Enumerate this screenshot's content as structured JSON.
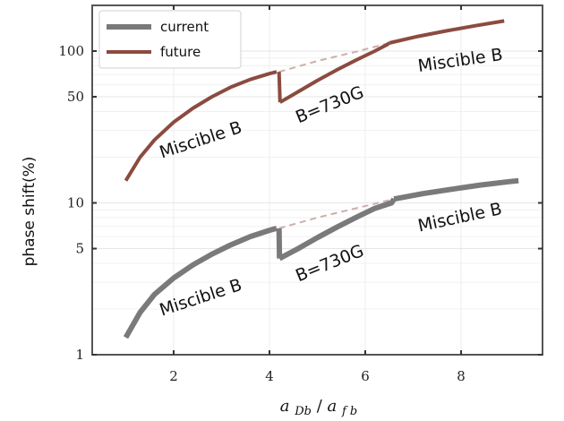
{
  "chart_data": {
    "type": "line",
    "title": "",
    "xlabel": "a_Db/a_fb",
    "xlabel_parts": {
      "a1": "a",
      "s1": "Db",
      "slash": "/",
      "a2": "a",
      "s2": "f b"
    },
    "ylabel": "phase shift(%)",
    "xlim": [
      0.3,
      9.7
    ],
    "ylim": [
      1,
      200
    ],
    "yscale": "log",
    "grid": true,
    "legend_position": "top-left",
    "x_ticks": [
      2,
      4,
      6,
      8
    ],
    "x_tick_labels": [
      "2",
      "4",
      "6",
      "8"
    ],
    "y_ticks": [
      1,
      5,
      10,
      50,
      100
    ],
    "y_tick_labels": [
      "1",
      "5",
      "10",
      "50",
      "100"
    ],
    "colors": {
      "current": "#7a7a7a",
      "future": "#8b4b3f",
      "dashed": "#c9b1aa",
      "frame": "#555555"
    },
    "series": [
      {
        "name": "current",
        "segments": [
          {
            "x": [
              1.0,
              1.3,
              1.6,
              2.0,
              2.4,
              2.8,
              3.2,
              3.6,
              4.0,
              4.15
            ],
            "y": [
              1.3,
              1.9,
              2.5,
              3.2,
              3.9,
              4.6,
              5.3,
              6.0,
              6.6,
              6.8
            ]
          },
          {
            "x": [
              4.2,
              4.21
            ],
            "y": [
              6.8,
              4.3
            ]
          },
          {
            "x": [
              4.21,
              4.6,
              5.0,
              5.4,
              5.8,
              6.2,
              6.55,
              6.6
            ],
            "y": [
              4.3,
              5.0,
              5.9,
              6.9,
              8.0,
              9.2,
              10.0,
              10.6
            ]
          },
          {
            "x": [
              6.6,
              7.2,
              7.8,
              8.4,
              9.0,
              9.2
            ],
            "y": [
              10.6,
              11.5,
              12.3,
              13.1,
              13.8,
              14.0
            ]
          }
        ],
        "dashed": {
          "x": [
            4.2,
            5.0,
            5.8,
            6.6
          ],
          "y": [
            6.8,
            8.0,
            9.2,
            10.6
          ]
        }
      },
      {
        "name": "future",
        "segments": [
          {
            "x": [
              1.0,
              1.3,
              1.6,
              2.0,
              2.4,
              2.8,
              3.2,
              3.6,
              4.0,
              4.15
            ],
            "y": [
              14.0,
              20.0,
              26.0,
              34.0,
              42.0,
              50.0,
              58.0,
              65.0,
              71.0,
              73.0
            ]
          },
          {
            "x": [
              4.2,
              4.22
            ],
            "y": [
              73.0,
              46.0
            ]
          },
          {
            "x": [
              4.22,
              4.6,
              5.0,
              5.4,
              5.8,
              6.2,
              6.45,
              6.5
            ],
            "y": [
              46.0,
              54.0,
              64.0,
              75.0,
              87.0,
              100.0,
              110.0,
              113.0
            ]
          },
          {
            "x": [
              6.5,
              7.1,
              7.7,
              8.3,
              8.9
            ],
            "y": [
              113.0,
              125.0,
              136.0,
              147.0,
              158.0
            ]
          }
        ],
        "dashed": {
          "x": [
            4.2,
            5.0,
            5.8,
            6.5
          ],
          "y": [
            73.0,
            86.0,
            99.0,
            113.0
          ]
        }
      }
    ],
    "annotations": [
      {
        "text": "Miscible B",
        "x": 2.6,
        "y": 24.0,
        "angle": -18
      },
      {
        "text": "B=730G",
        "x": 5.3,
        "y": 41.0,
        "angle": -22
      },
      {
        "text": "Miscible B",
        "x": 8.0,
        "y": 80.0,
        "angle": -8
      },
      {
        "text": "Miscible B",
        "x": 2.6,
        "y": 2.2,
        "angle": -18
      },
      {
        "text": "B=730G",
        "x": 5.3,
        "y": 3.7,
        "angle": -22
      },
      {
        "text": "Miscible B",
        "x": 8.0,
        "y": 7.4,
        "angle": -12
      }
    ]
  }
}
